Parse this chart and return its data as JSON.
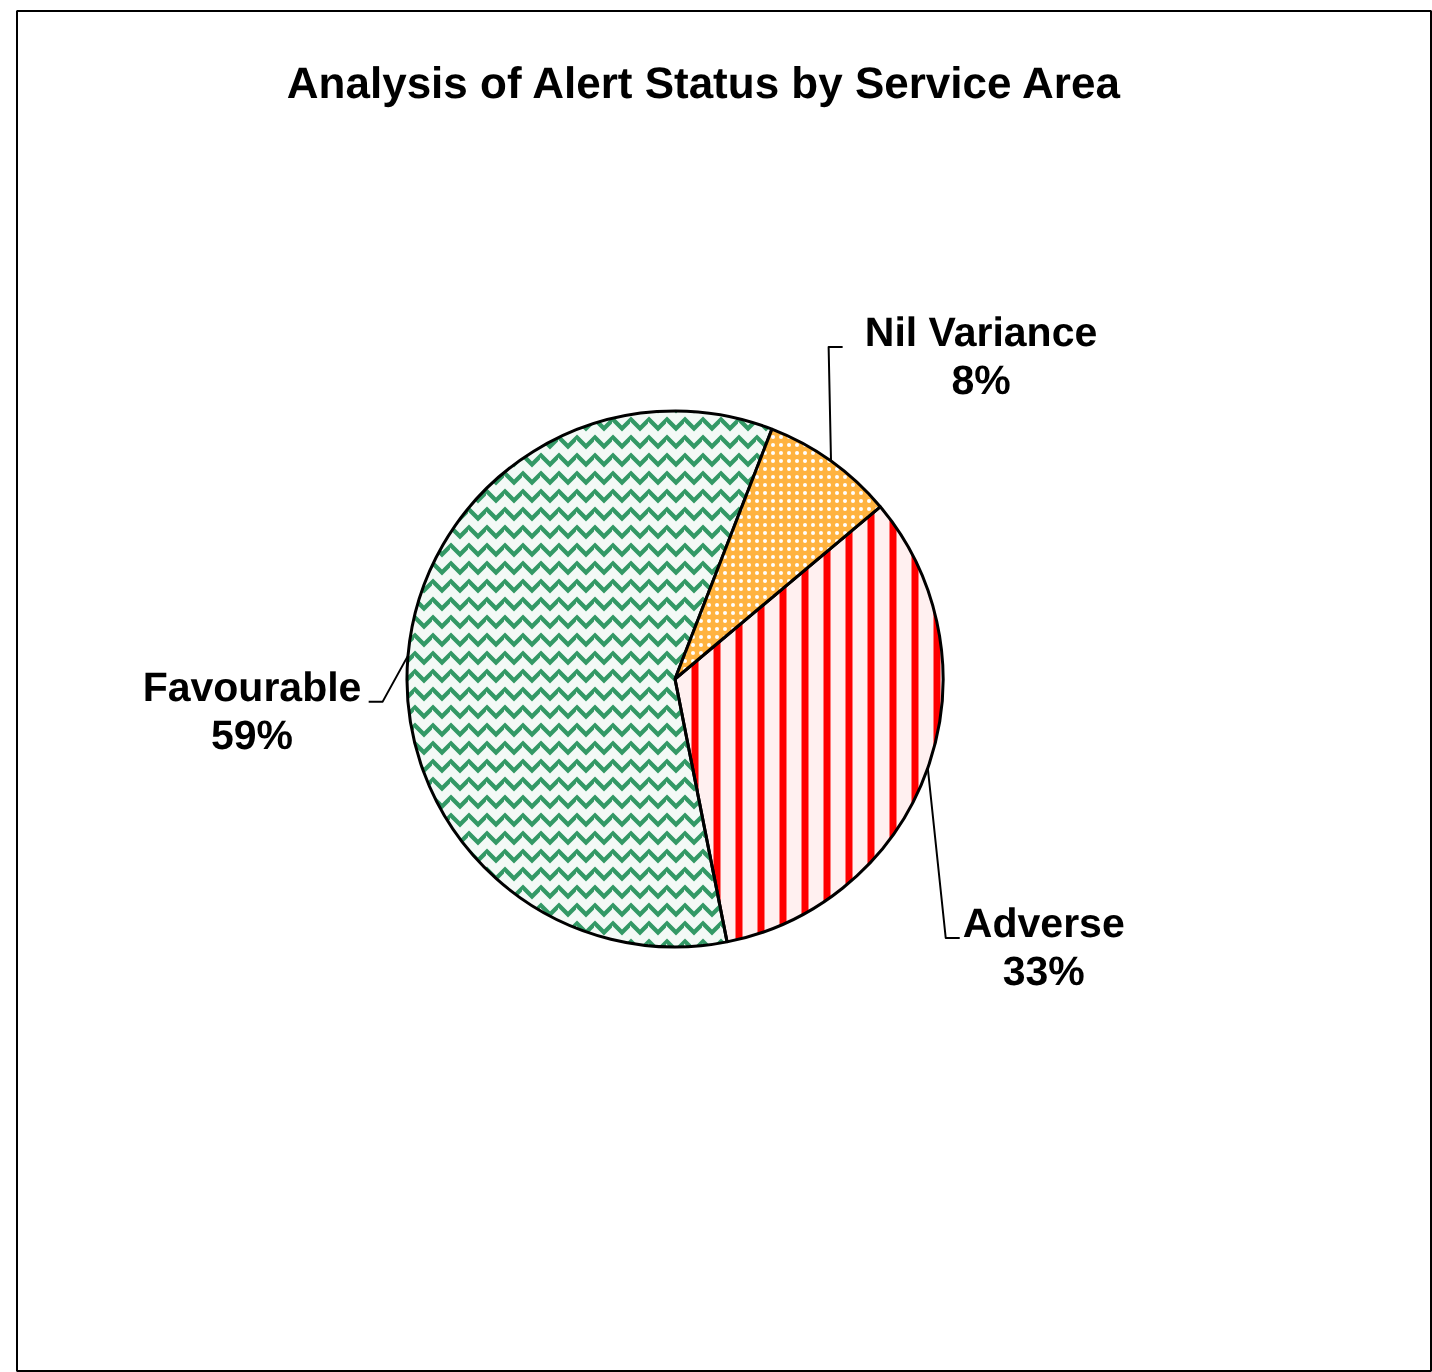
{
  "chart_data": {
    "type": "pie",
    "title": "Analysis of Alert Status by Service Area",
    "categories": [
      "Adverse",
      "Favourable",
      "Nil Variance"
    ],
    "values": [
      33,
      59,
      8
    ],
    "colors": [
      "#ff0000",
      "#339966",
      "#ff9900"
    ],
    "value_labels": [
      "33%",
      "59%",
      "8%"
    ]
  }
}
